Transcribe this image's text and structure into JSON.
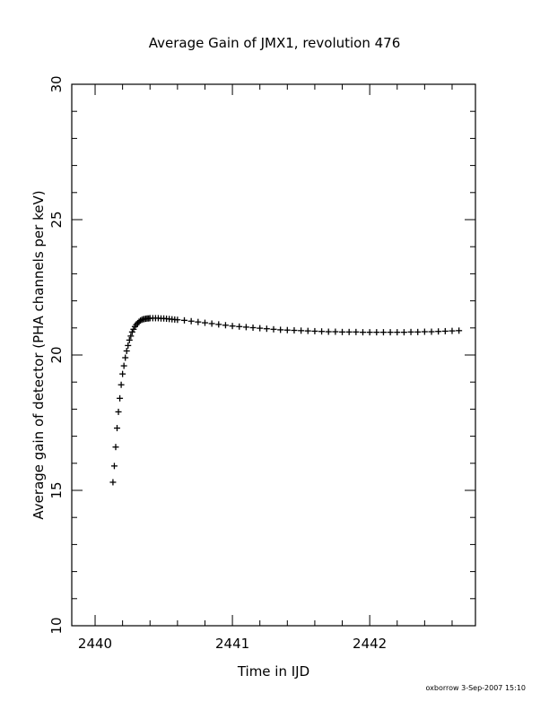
{
  "chart_data": {
    "type": "scatter",
    "title": "Average Gain of JMX1, revolution 476",
    "xlabel": "Time in IJD",
    "ylabel": "Average gain of detector (PHA channels per keV)",
    "xlim": [
      2439.83,
      2442.77
    ],
    "ylim": [
      10,
      30
    ],
    "xticks": [
      2440,
      2441,
      2442
    ],
    "xtick_labels": [
      "2440",
      "2441",
      "2442"
    ],
    "yticks": [
      10,
      15,
      20,
      25,
      30
    ],
    "ytick_labels": [
      "10",
      "15",
      "20",
      "25",
      "30"
    ],
    "marker": "+",
    "grid": false,
    "series_color": "#000000",
    "series": [
      {
        "x": [
          2440.13,
          2440.14,
          2440.15,
          2440.16,
          2440.17,
          2440.18,
          2440.19,
          2440.2,
          2440.21,
          2440.22,
          2440.23,
          2440.24,
          2440.25,
          2440.26,
          2440.27,
          2440.28,
          2440.29,
          2440.3,
          2440.31,
          2440.32,
          2440.33,
          2440.34,
          2440.35,
          2440.36,
          2440.37,
          2440.38,
          2440.39,
          2440.4,
          2440.42,
          2440.44,
          2440.46,
          2440.48,
          2440.5,
          2440.52,
          2440.54,
          2440.56,
          2440.58,
          2440.6,
          2440.65,
          2440.7,
          2440.75,
          2440.8,
          2440.85,
          2440.9,
          2440.95,
          2441.0,
          2441.05,
          2441.1,
          2441.15,
          2441.2,
          2441.25,
          2441.3,
          2441.35,
          2441.4,
          2441.45,
          2441.5,
          2441.55,
          2441.6,
          2441.65,
          2441.7,
          2441.75,
          2441.8,
          2441.85,
          2441.9,
          2441.95,
          2442.0,
          2442.05,
          2442.1,
          2442.15,
          2442.2,
          2442.25,
          2442.3,
          2442.35,
          2442.4,
          2442.45,
          2442.5,
          2442.55,
          2442.6,
          2442.65
        ],
        "y": [
          15.3,
          15.9,
          16.6,
          17.3,
          17.9,
          18.4,
          18.9,
          19.3,
          19.6,
          19.9,
          20.15,
          20.35,
          20.55,
          20.7,
          20.85,
          20.95,
          21.05,
          21.12,
          21.18,
          21.23,
          21.27,
          21.3,
          21.32,
          21.33,
          21.34,
          21.35,
          21.35,
          21.36,
          21.36,
          21.36,
          21.36,
          21.35,
          21.35,
          21.34,
          21.33,
          21.32,
          21.31,
          21.3,
          21.28,
          21.25,
          21.22,
          21.19,
          21.16,
          21.13,
          21.1,
          21.07,
          21.05,
          21.03,
          21.01,
          20.99,
          20.97,
          20.95,
          20.93,
          20.92,
          20.91,
          20.9,
          20.89,
          20.88,
          20.87,
          20.86,
          20.86,
          20.85,
          20.85,
          20.85,
          20.84,
          20.84,
          20.84,
          20.84,
          20.84,
          20.84,
          20.84,
          20.85,
          20.85,
          20.86,
          20.86,
          20.87,
          20.88,
          20.89,
          20.9
        ]
      }
    ]
  },
  "footer": {
    "credit": "oxborrow   3-Sep-2007 15:10"
  }
}
